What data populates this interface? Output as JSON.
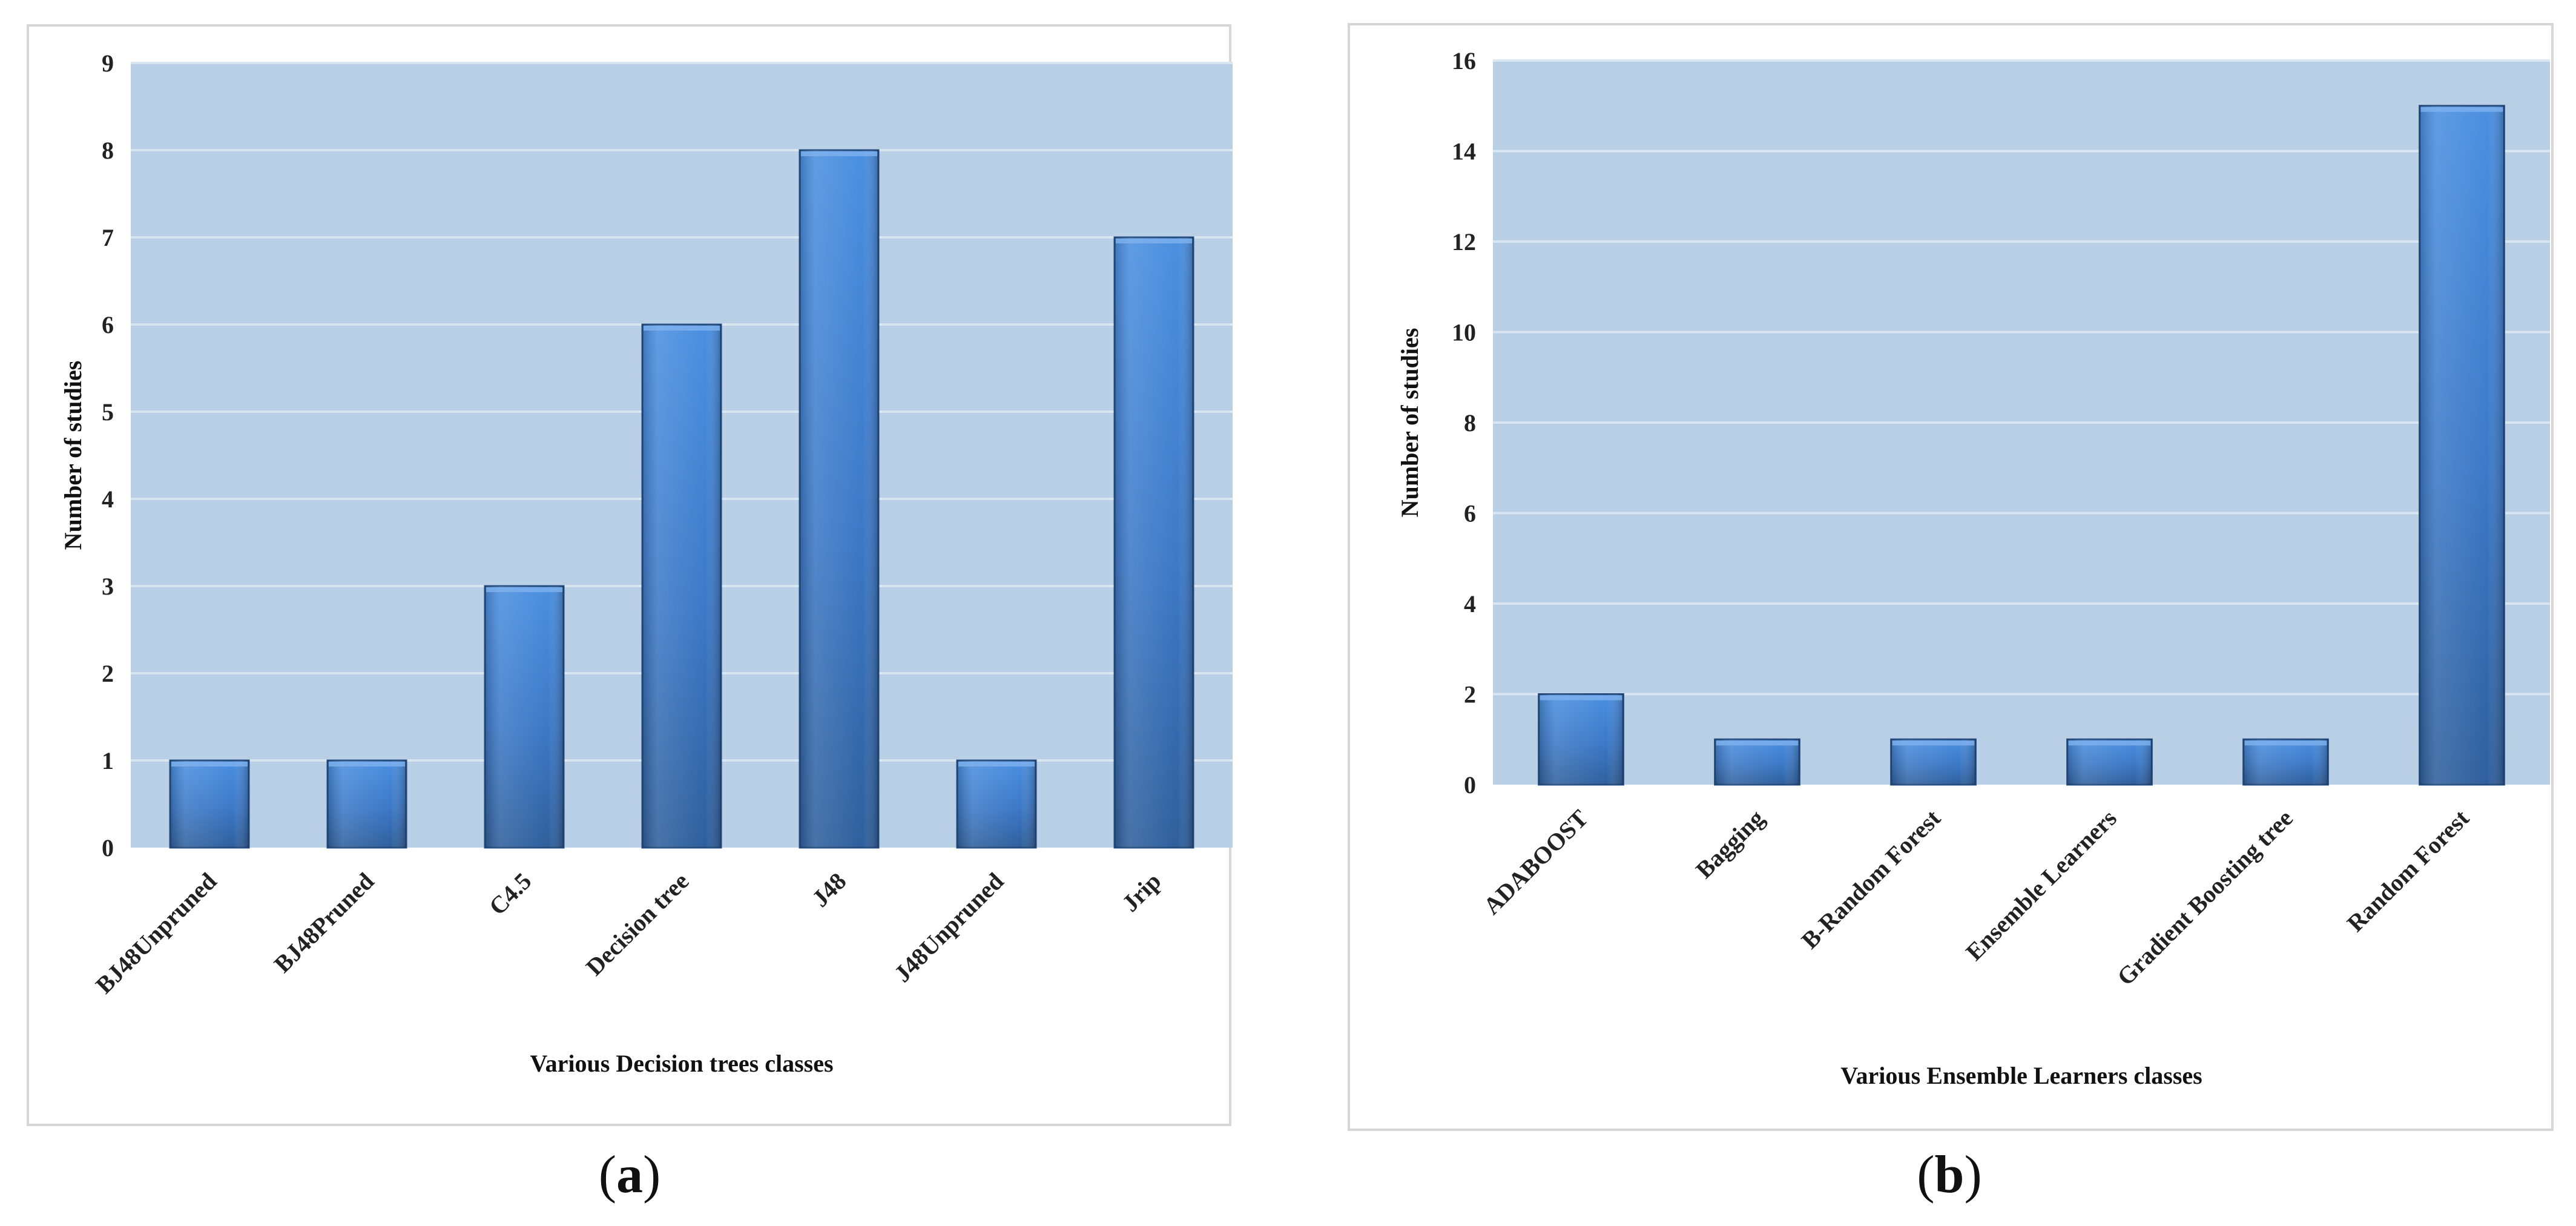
{
  "chart_data": [
    {
      "type": "bar",
      "categories": [
        "BJ48Unpruned",
        "BJ48Pruned",
        "C4.5",
        "Decision tree",
        "J48",
        "J48Unpruned",
        "Jrip"
      ],
      "values": [
        1,
        1,
        3,
        6,
        8,
        1,
        7
      ],
      "title": "",
      "xlabel": "Various Decision trees classes",
      "ylabel": "Number of studies",
      "ylim": [
        0,
        9
      ],
      "yticks": [
        "0",
        "1",
        "2",
        "3",
        "4",
        "5",
        "6",
        "7",
        "8",
        "9"
      ],
      "caption_open": "(",
      "caption_letter": "a",
      "caption_close": ")"
    },
    {
      "type": "bar",
      "categories": [
        "ADABOOST",
        "Bagging",
        "B-Random Forest",
        "Ensemble Learners",
        "Gradient Boosting tree",
        "Random Forest"
      ],
      "values": [
        2,
        1,
        1,
        1,
        1,
        15
      ],
      "title": "",
      "xlabel": "Various Ensemble Learners classes",
      "ylabel": "Number of studies",
      "ylim": [
        0,
        16
      ],
      "yticks": [
        "0",
        "2",
        "4",
        "6",
        "8",
        "10",
        "12",
        "14",
        "16"
      ],
      "caption_open": "(",
      "caption_letter": "b",
      "caption_close": ")"
    }
  ],
  "colors": {
    "plot_bg": "#b9cfe6",
    "grid": "#d9e6f2",
    "bar_light": "#4a8fe0",
    "bar_mid": "#3f7fd0",
    "bar_dark": "#2f5f9c",
    "bar_edge": "#244c80"
  }
}
